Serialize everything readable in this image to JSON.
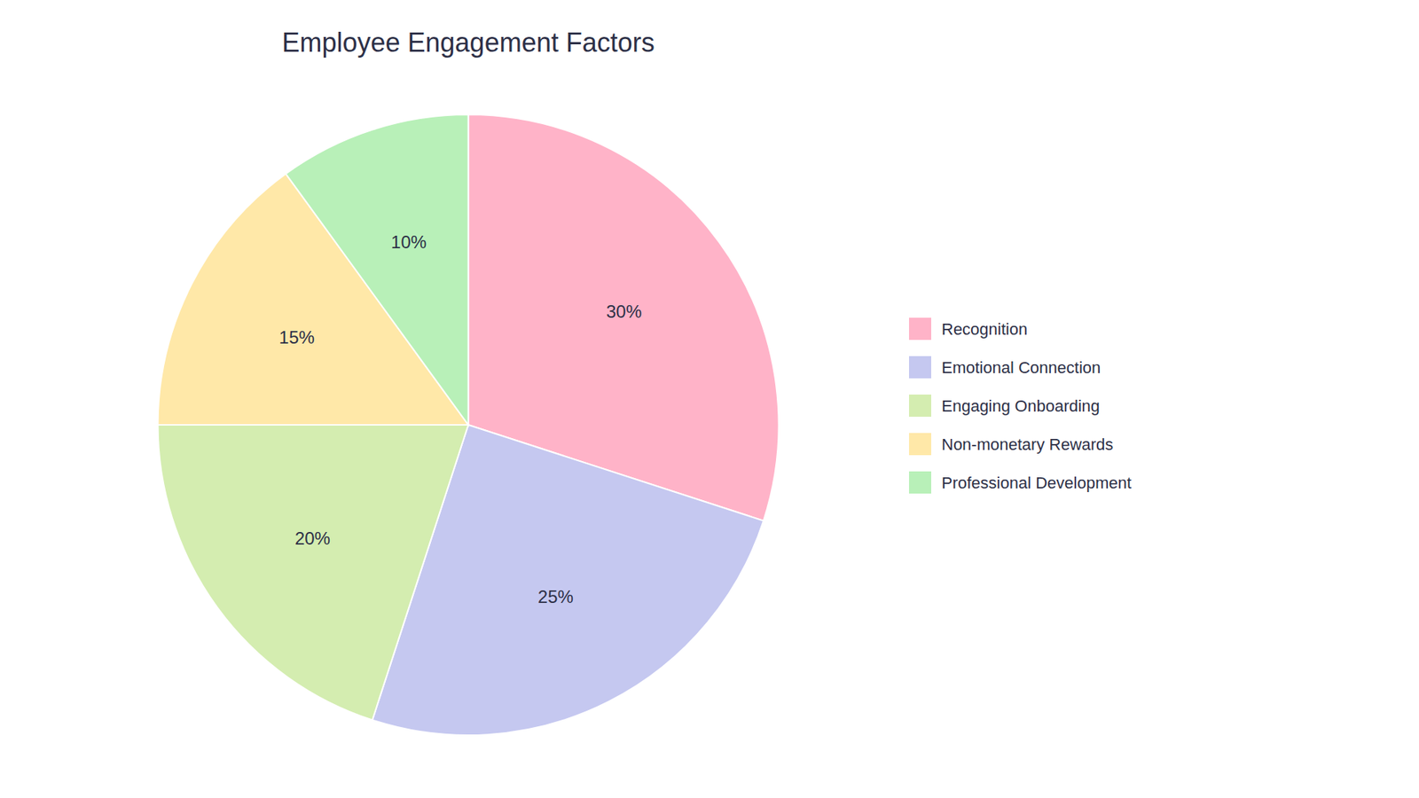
{
  "chart_data": {
    "type": "pie",
    "title": "Employee Engagement Factors",
    "categories": [
      "Recognition",
      "Emotional Connection",
      "Engaging Onboarding",
      "Non-monetary Rewards",
      "Professional Development"
    ],
    "values": [
      30,
      25,
      20,
      15,
      10
    ],
    "value_labels": [
      "30%",
      "25%",
      "20%",
      "15%",
      "10%"
    ],
    "colors": [
      "#FFB3C8",
      "#C5C8F0",
      "#D4EDB0",
      "#FFE8A8",
      "#B8F0B8"
    ],
    "data_labels": true,
    "legend": "right"
  }
}
